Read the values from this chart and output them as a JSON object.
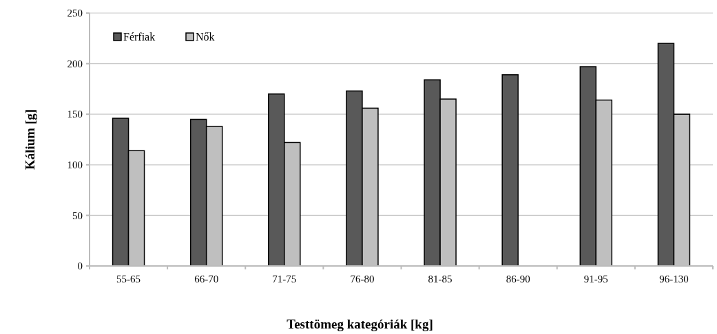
{
  "chart_data": {
    "type": "bar",
    "xlabel": "Testtömeg kategóriák [kg]",
    "ylabel": "Kálium [g]",
    "categories": [
      "55-65",
      "66-70",
      "71-75",
      "76-80",
      "81-85",
      "86-90",
      "91-95",
      "96-130"
    ],
    "series": [
      {
        "name": "Férfiak",
        "color": "#595959",
        "values": [
          146,
          145,
          170,
          173,
          184,
          189,
          197,
          220
        ]
      },
      {
        "name": "Nők",
        "color": "#bfbfbf",
        "values": [
          114,
          138,
          122,
          156,
          165,
          null,
          164,
          150
        ]
      }
    ],
    "ylim": [
      0,
      250
    ],
    "yticks": [
      0,
      50,
      100,
      150,
      200,
      250
    ],
    "grid": "y",
    "legend": "top left"
  }
}
